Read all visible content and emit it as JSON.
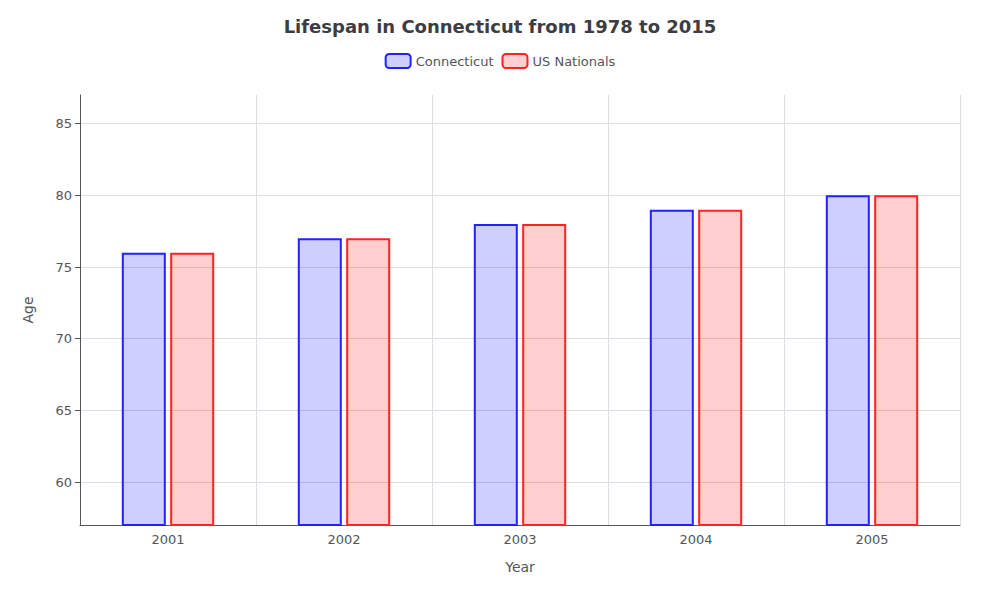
{
  "chart_data": {
    "type": "bar",
    "title": "Lifespan in Connecticut from 1978 to 2015",
    "xlabel": "Year",
    "ylabel": "Age",
    "categories": [
      2001,
      2002,
      2003,
      2004,
      2005
    ],
    "series": [
      {
        "name": "Connecticut",
        "color": "#2222ff",
        "values": [
          76,
          77,
          78,
          79,
          80
        ]
      },
      {
        "name": "US Nationals",
        "color": "#ff2222",
        "values": [
          76,
          77,
          78,
          79,
          80
        ]
      }
    ],
    "ylim": [
      57,
      87
    ],
    "yticks": [
      60,
      65,
      70,
      75,
      80,
      85
    ],
    "grid": true,
    "legend": "top"
  }
}
